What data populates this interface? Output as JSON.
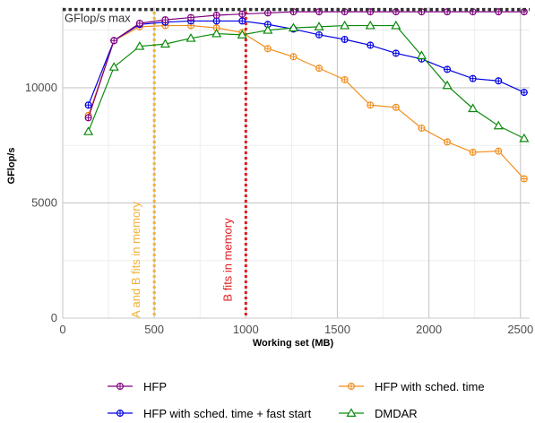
{
  "chart_data": {
    "type": "line",
    "xlabel": "Working set (MB)",
    "ylabel": "GFlop/s",
    "xlim": [
      0,
      2550
    ],
    "ylim": [
      0,
      13500
    ],
    "xticks": [
      0,
      500,
      1000,
      1500,
      2000,
      2500
    ],
    "yticks": [
      0,
      5000,
      10000
    ],
    "grid": true,
    "legend_position": "bottom",
    "max_line": {
      "y": 13400,
      "label": "GFlop/s max",
      "color": "#333333"
    },
    "vlines": [
      {
        "x": 500,
        "label": "A and B fits in memory",
        "color": "#f2b134"
      },
      {
        "x": 1000,
        "label": "B fits in memory",
        "color": "#e31a1c"
      }
    ],
    "series": [
      {
        "name": "HFP",
        "color": "#800080",
        "marker": "circle-plus",
        "x": [
          140,
          280,
          420,
          560,
          700,
          840,
          980,
          1120,
          1260,
          1400,
          1540,
          1680,
          1820,
          1960,
          2100,
          2240,
          2380,
          2520
        ],
        "y": [
          8700,
          12050,
          12800,
          12950,
          13050,
          13150,
          13200,
          13250,
          13300,
          13300,
          13300,
          13300,
          13300,
          13300,
          13300,
          13300,
          13300,
          13300
        ]
      },
      {
        "name": "HFP with sched. time",
        "color": "#f28e1c",
        "marker": "circle-plus",
        "x": [
          140,
          280,
          420,
          560,
          700,
          840,
          980,
          1120,
          1260,
          1400,
          1540,
          1680,
          1820,
          1960,
          2100,
          2240,
          2380,
          2520
        ],
        "y": [
          8800,
          12050,
          12650,
          12700,
          12700,
          12600,
          12400,
          11700,
          11350,
          10850,
          10350,
          9250,
          9150,
          8250,
          7650,
          7200,
          7250,
          6050
        ]
      },
      {
        "name": "HFP with sched. time + fast start",
        "color": "#0000e0",
        "marker": "circle-plus",
        "x": [
          140,
          280,
          420,
          560,
          700,
          840,
          980,
          1120,
          1260,
          1400,
          1540,
          1680,
          1820,
          1960,
          2100,
          2240,
          2380,
          2520
        ],
        "y": [
          9250,
          12050,
          12750,
          12850,
          12900,
          12900,
          12900,
          12750,
          12550,
          12300,
          12100,
          11850,
          11500,
          11250,
          10800,
          10400,
          10300,
          9800
        ]
      },
      {
        "name": "DMDAR",
        "color": "#0a8a0a",
        "marker": "triangle",
        "x": [
          140,
          280,
          420,
          560,
          700,
          840,
          980,
          1120,
          1260,
          1400,
          1540,
          1680,
          1820,
          1960,
          2100,
          2240,
          2380,
          2520
        ],
        "y": [
          8100,
          10900,
          11800,
          11900,
          12150,
          12350,
          12300,
          12500,
          12600,
          12650,
          12700,
          12700,
          12700,
          11400,
          10100,
          9100,
          8350,
          7800
        ]
      }
    ]
  }
}
